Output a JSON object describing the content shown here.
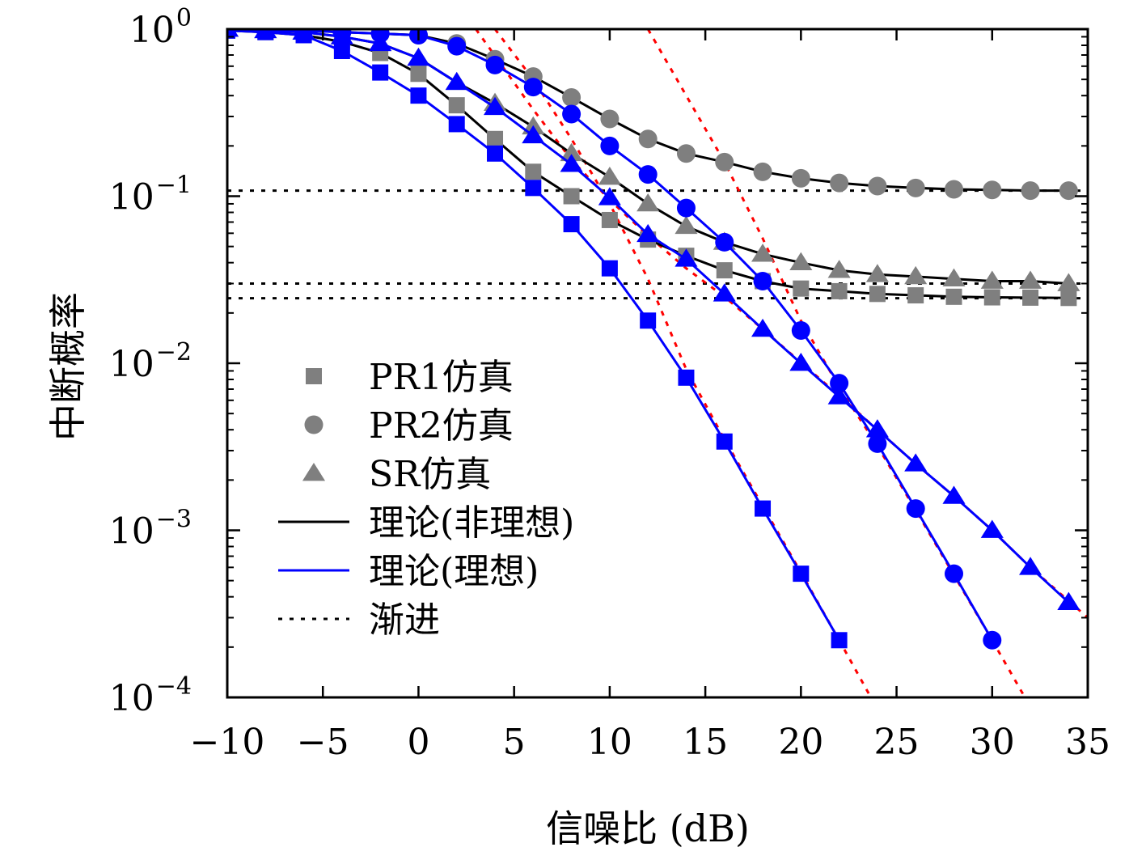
{
  "chart_data": {
    "type": "line",
    "xlabel": "信噪比 (dB)",
    "ylabel": "中断概率",
    "x_scale": "linear",
    "y_scale": "log",
    "xlim": [
      -10,
      35
    ],
    "ylim": [
      0.0001,
      1
    ],
    "x_ticks": [
      -10,
      -5,
      0,
      5,
      10,
      15,
      20,
      25,
      30,
      35
    ],
    "x_tick_labels": [
      "−10",
      "−5",
      "0",
      "5",
      "10",
      "15",
      "20",
      "25",
      "30",
      "35"
    ],
    "y_ticks": [
      {
        "value": 1,
        "base": "10",
        "exp": "0"
      },
      {
        "value": 0.1,
        "base": "10",
        "exp": "−1"
      },
      {
        "value": 0.01,
        "base": "10",
        "exp": "−2"
      },
      {
        "value": 0.001,
        "base": "10",
        "exp": "−3"
      },
      {
        "value": 0.0001,
        "base": "10",
        "exp": "−4"
      }
    ],
    "legend": {
      "position": "center-left",
      "entries": [
        {
          "label": "PR1仿真",
          "marker": "square",
          "line": "none",
          "color": "#7f7f7f"
        },
        {
          "label": "PR2仿真",
          "marker": "circle",
          "line": "none",
          "color": "#7f7f7f"
        },
        {
          "label": "SR仿真",
          "marker": "triangle",
          "line": "none",
          "color": "#7f7f7f"
        },
        {
          "label": "理论(非理想)",
          "marker": "none",
          "line": "solid",
          "color": "#000000"
        },
        {
          "label": "理论(理想)",
          "marker": "none",
          "line": "solid",
          "color": "#0000ff"
        },
        {
          "label": "渐进",
          "marker": "none",
          "line": "dotted",
          "color": "#000000"
        }
      ]
    },
    "series": [
      {
        "group": "non-ideal",
        "scheme": "PR1",
        "marker": "square",
        "color": "#7f7f7f",
        "x": [
          -10,
          -8,
          -6,
          -4,
          -2,
          0,
          2,
          4,
          6,
          8,
          10,
          12,
          14,
          16,
          18,
          20,
          22,
          24,
          26,
          28,
          30,
          32,
          34
        ],
        "y": [
          0.98,
          0.96,
          0.92,
          0.84,
          0.72,
          0.54,
          0.35,
          0.22,
          0.14,
          0.1,
          0.072,
          0.055,
          0.044,
          0.036,
          0.031,
          0.028,
          0.027,
          0.026,
          0.0255,
          0.025,
          0.0248,
          0.0247,
          0.0246
        ]
      },
      {
        "group": "non-ideal",
        "scheme": "PR2",
        "marker": "circle",
        "color": "#7f7f7f",
        "x": [
          -10,
          -8,
          -6,
          -4,
          -2,
          0,
          2,
          4,
          6,
          8,
          10,
          12,
          14,
          16,
          18,
          20,
          22,
          24,
          26,
          28,
          30,
          32,
          34
        ],
        "y": [
          1.0,
          0.99,
          0.98,
          0.96,
          0.94,
          0.92,
          0.82,
          0.66,
          0.52,
          0.39,
          0.29,
          0.22,
          0.18,
          0.16,
          0.14,
          0.128,
          0.12,
          0.115,
          0.112,
          0.11,
          0.109,
          0.108,
          0.108
        ]
      },
      {
        "group": "non-ideal",
        "scheme": "SR",
        "marker": "triangle",
        "color": "#7f7f7f",
        "x": [
          -10,
          -8,
          -6,
          -4,
          -2,
          0,
          2,
          4,
          6,
          8,
          10,
          12,
          14,
          16,
          18,
          20,
          22,
          24,
          26,
          28,
          30,
          32,
          34
        ],
        "y": [
          1.0,
          0.98,
          0.96,
          0.9,
          0.82,
          0.67,
          0.48,
          0.36,
          0.26,
          0.18,
          0.13,
          0.09,
          0.066,
          0.053,
          0.045,
          0.04,
          0.036,
          0.034,
          0.033,
          0.032,
          0.031,
          0.031,
          0.03
        ]
      },
      {
        "group": "ideal",
        "scheme": "PR1",
        "marker": "square",
        "color": "#0000ff",
        "x": [
          -10,
          -8,
          -6,
          -4,
          -2,
          0,
          2,
          4,
          6,
          8,
          10,
          12,
          14,
          16,
          18,
          20,
          22
        ],
        "y": [
          0.98,
          0.96,
          0.92,
          0.74,
          0.55,
          0.4,
          0.27,
          0.18,
          0.112,
          0.068,
          0.037,
          0.018,
          0.0082,
          0.0034,
          0.00135,
          0.00055,
          0.00022
        ]
      },
      {
        "group": "ideal",
        "scheme": "PR2",
        "marker": "circle",
        "color": "#0000ff",
        "x": [
          -10,
          -8,
          -6,
          -4,
          -2,
          0,
          2,
          4,
          6,
          8,
          10,
          12,
          14,
          16,
          18,
          20,
          22,
          24,
          26,
          28,
          30
        ],
        "y": [
          1.0,
          0.99,
          0.98,
          0.96,
          0.94,
          0.92,
          0.79,
          0.61,
          0.45,
          0.31,
          0.2,
          0.135,
          0.085,
          0.053,
          0.031,
          0.0157,
          0.0076,
          0.0033,
          0.00135,
          0.00055,
          0.00022
        ]
      },
      {
        "group": "ideal",
        "scheme": "SR",
        "marker": "triangle",
        "color": "#0000ff",
        "x": [
          -10,
          -8,
          -6,
          -4,
          -2,
          0,
          2,
          4,
          6,
          8,
          10,
          12,
          14,
          16,
          18,
          20,
          22,
          24,
          26,
          28,
          30,
          32,
          34
        ],
        "y": [
          1.0,
          0.98,
          0.96,
          0.9,
          0.82,
          0.67,
          0.48,
          0.34,
          0.23,
          0.155,
          0.098,
          0.059,
          0.042,
          0.026,
          0.016,
          0.01,
          0.0063,
          0.004,
          0.0025,
          0.0016,
          0.001,
          0.0006,
          0.00037
        ]
      }
    ],
    "asymptotes": {
      "floors": [
        0.108,
        0.03,
        0.0245
      ],
      "high_snr": [
        {
          "scheme": "PR1",
          "x": [
            4,
            6,
            8,
            10,
            12,
            14,
            16,
            18,
            20,
            22,
            24
          ],
          "y": [
            1.0,
            0.5,
            0.22,
            0.09,
            0.032,
            0.0092,
            0.0035,
            0.0014,
            0.00056,
            0.00022,
            8.5e-05
          ]
        },
        {
          "scheme": "PR2",
          "x": [
            12,
            14,
            16,
            18,
            20,
            22,
            24,
            26,
            28,
            30,
            32
          ],
          "y": [
            1.0,
            0.4,
            0.16,
            0.056,
            0.018,
            0.0072,
            0.0032,
            0.00132,
            0.00054,
            0.00022,
            8.75e-05
          ]
        },
        {
          "scheme": "SR",
          "x": [
            3,
            6,
            8,
            10,
            12,
            14,
            16,
            18,
            20,
            22,
            24,
            26,
            28,
            30,
            32,
            35
          ],
          "y": [
            1.0,
            0.33,
            0.165,
            0.095,
            0.058,
            0.037,
            0.025,
            0.016,
            0.0101,
            0.0064,
            0.004,
            0.0025,
            0.0016,
            0.001,
            0.0006,
            0.0003
          ]
        }
      ]
    },
    "colors": {
      "simulation": "#7f7f7f",
      "theory_nonideal": "#000000",
      "theory_ideal": "#0000ff",
      "asymptote_high_snr": "#ff0000",
      "asymptote_floor": "#000000"
    },
    "grid": false
  }
}
